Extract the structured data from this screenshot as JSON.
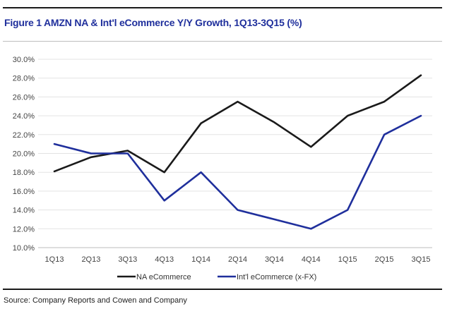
{
  "figure": {
    "title": "Figure 1 AMZN NA & Int'l eCommerce Y/Y Growth, 1Q13-3Q15 (%)",
    "source": "Source: Company Reports and Cowen and Company"
  },
  "chart_data": {
    "type": "line",
    "title": "",
    "xlabel": "",
    "ylabel": "",
    "categories": [
      "1Q13",
      "2Q13",
      "3Q13",
      "4Q13",
      "1Q14",
      "2Q14",
      "3Q14",
      "4Q14",
      "1Q15",
      "2Q15",
      "3Q15"
    ],
    "y_ticks": [
      "10.0%",
      "12.0%",
      "14.0%",
      "16.0%",
      "18.0%",
      "20.0%",
      "22.0%",
      "24.0%",
      "26.0%",
      "28.0%",
      "30.0%"
    ],
    "ylim": [
      10,
      30
    ],
    "grid": "horizontal",
    "legend_position": "bottom",
    "series": [
      {
        "name": "NA eCommerce",
        "color": "#1a1a1a",
        "values": [
          18.1,
          19.6,
          20.3,
          18.0,
          23.2,
          25.5,
          23.3,
          20.7,
          24.0,
          25.5,
          28.3
        ]
      },
      {
        "name": "Int'l eCommerce (x-FX)",
        "color": "#1f2f9c",
        "values": [
          21.0,
          20.0,
          20.0,
          15.0,
          18.0,
          14.0,
          13.0,
          12.0,
          14.0,
          22.0,
          24.0
        ]
      }
    ]
  }
}
